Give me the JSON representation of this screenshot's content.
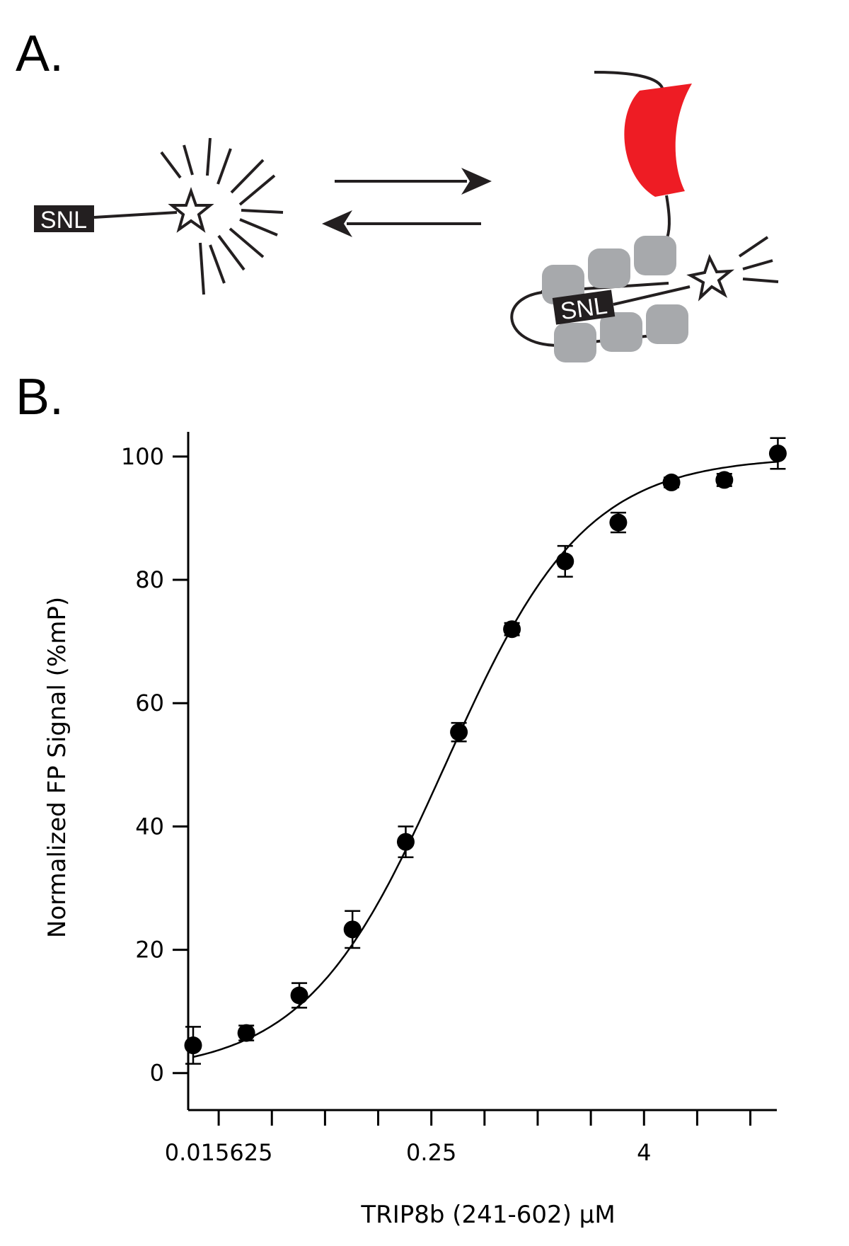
{
  "panels": {
    "a_label": "A.",
    "b_label": "B."
  },
  "schematic": {
    "free_probe_tag": "SNL",
    "bound_probe_tag": "SNL",
    "colors": {
      "binding_partner": "#ee1c24",
      "repeat_domains": "#a7a9ac",
      "tag": "#231f20"
    }
  },
  "chart_data": {
    "type": "scatter",
    "title": "",
    "xlabel": "TRIP8b (241-602) µM",
    "ylabel": "Normalized FP Signal (%mP)",
    "x_scale": "log2",
    "xlim": [
      0.0105,
      22.6
    ],
    "ylim": [
      -6,
      104
    ],
    "x_tick_labels": [
      {
        "value": 0.015625,
        "label": "0.015625"
      },
      {
        "value": 0.25,
        "label": "0.25"
      },
      {
        "value": 4,
        "label": "4"
      }
    ],
    "x_minor_ticks": [
      0.015625,
      0.03125,
      0.0625,
      0.125,
      0.25,
      0.5,
      1,
      2,
      4,
      8,
      16
    ],
    "y_ticks": [
      0,
      20,
      40,
      60,
      80,
      100
    ],
    "y_tick_labels": [
      "0",
      "20",
      "40",
      "60",
      "80",
      "100"
    ],
    "grid": false,
    "legend": "none",
    "series": [
      {
        "kind": "points_with_error_bars",
        "x": [
          0.0112,
          0.0224,
          0.0447,
          0.0894,
          0.179,
          0.358,
          0.715,
          1.43,
          2.86,
          5.72,
          11.4,
          22.9
        ],
        "y": [
          4.5,
          6.5,
          12.6,
          23.3,
          37.5,
          55.3,
          72.0,
          83.0,
          89.3,
          95.8,
          96.2,
          100.5
        ],
        "err": [
          3.0,
          1.2,
          2.0,
          3.0,
          2.5,
          1.5,
          1.0,
          2.5,
          1.6,
          0.8,
          1.0,
          2.5
        ]
      },
      {
        "kind": "fit_curve",
        "model": "hill",
        "bottom": 0,
        "top": 100,
        "ec50": 0.3,
        "hill": 1.1
      }
    ]
  }
}
